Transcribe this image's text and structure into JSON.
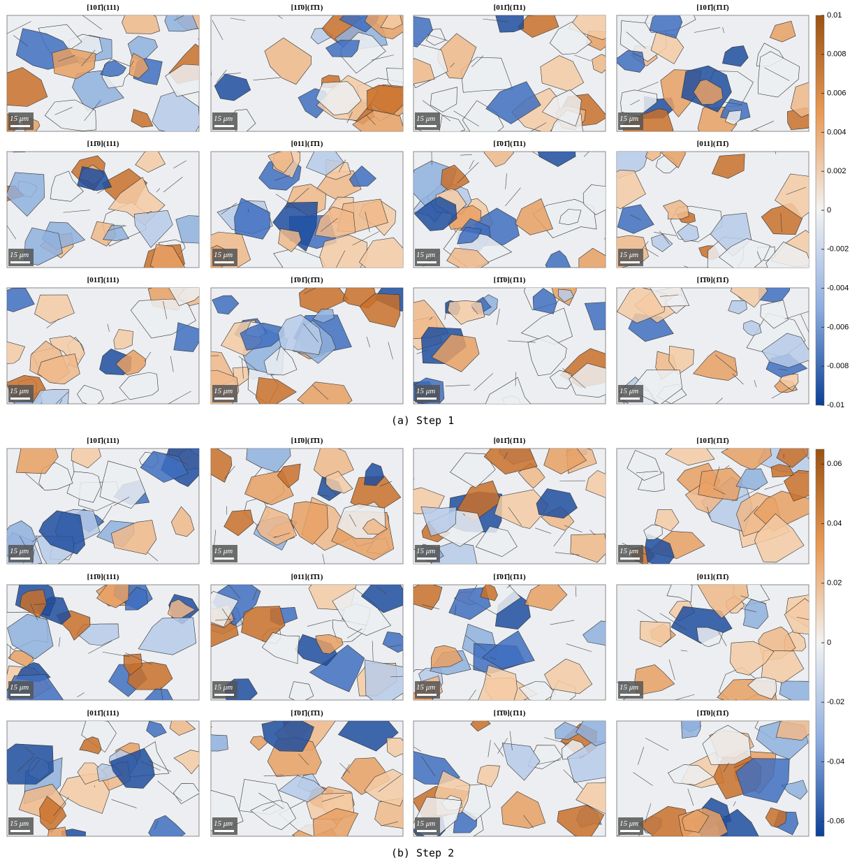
{
  "panels": [
    {
      "caption": "(a) Step 1",
      "colorbar": {
        "lim": [
          -0.01,
          0.01
        ],
        "ticks": [
          0.01,
          0.008,
          0.006,
          0.004,
          0.002,
          0,
          -0.002,
          -0.004,
          -0.006,
          -0.008,
          -0.01
        ]
      },
      "maps": [
        "[101̄](111)",
        "[11̄0](1̄1̄1)",
        "[011̄](1̄11)",
        "[101̄](1̄11̄)",
        "[11̄0](111)",
        "[011](1̄1̄1)",
        "[1̄01̄](1̄11)",
        "[011](1̄11̄)",
        "[011̄](111)",
        "[1̄01̄](1̄1̄1)",
        "[1̄1̄0](1̄11)",
        "[1̄1̄0](1̄11̄)"
      ]
    },
    {
      "caption": "(b) Step 2",
      "colorbar": {
        "lim": [
          -0.065,
          0.065
        ],
        "ticks": [
          0.06,
          0.04,
          0.02,
          0,
          -0.02,
          -0.04,
          -0.06
        ]
      },
      "maps": [
        "[101̄](111)",
        "[11̄0](1̄1̄1)",
        "[011̄](1̄11)",
        "[101̄](1̄11̄)",
        "[11̄0](111)",
        "[011](1̄1̄1)",
        "[1̄01̄](1̄11)",
        "[011](1̄11̄)",
        "[011̄](111)",
        "[1̄01̄](1̄1̄1)",
        "[1̄1̄0](1̄11)",
        "[1̄1̄0](1̄11̄)"
      ]
    }
  ],
  "scale_bar_label": "15 μm"
}
